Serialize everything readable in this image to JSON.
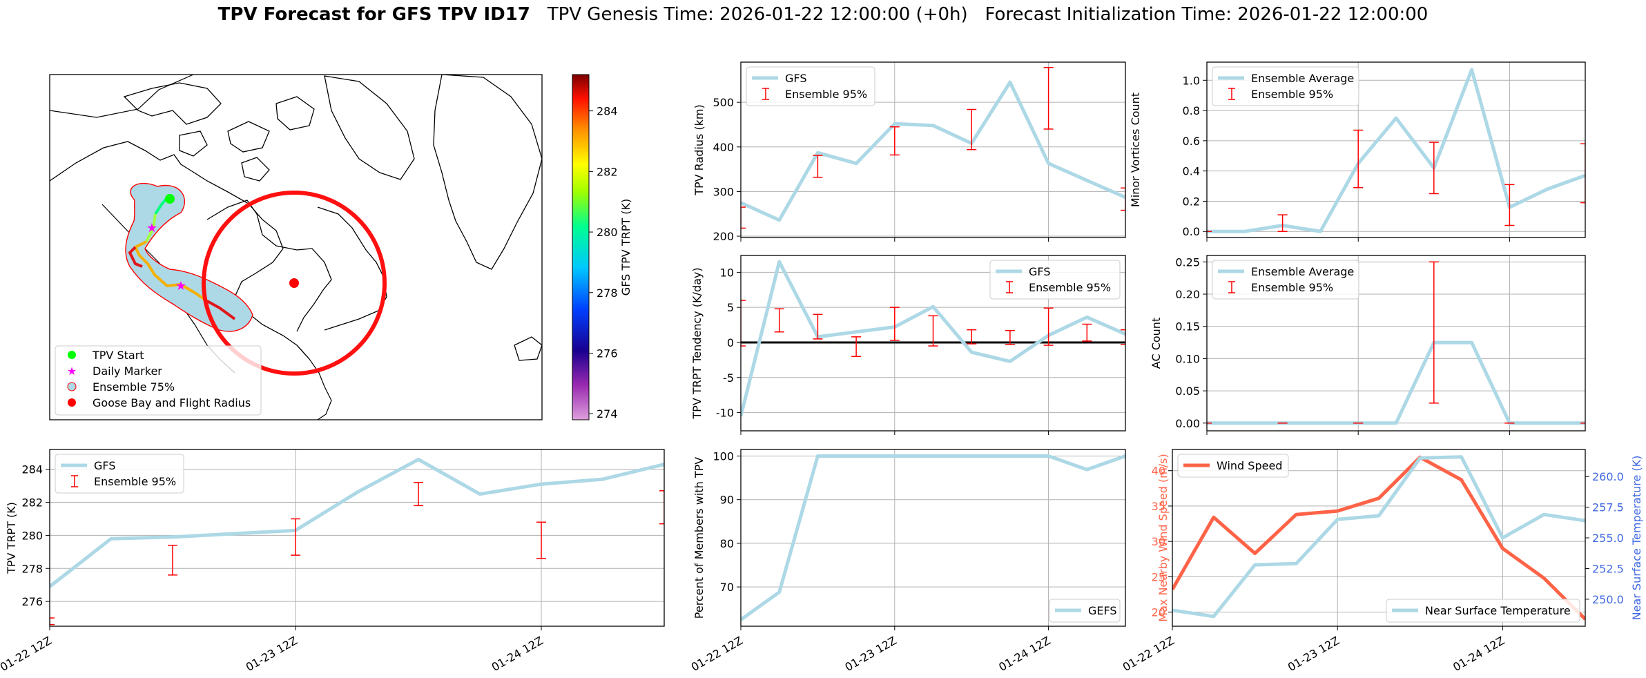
{
  "title": {
    "bold": "TPV Forecast for GFS TPV ID17",
    "genesis": "TPV Genesis Time: 2026-01-22 12:00:00 (+0h)",
    "init": "Forecast Initialization Time: 2026-01-22 12:00:00"
  },
  "colors": {
    "line": "#add8e6",
    "err": "#ff0000",
    "wind": "#ff6347",
    "temp_axis": "#4169e1",
    "black": "#000000",
    "grid": "#b0b0b0"
  },
  "map": {
    "legend": [
      "TPV Start",
      "Daily Marker",
      "Ensemble 75%",
      "Goose Bay and Flight Radius"
    ],
    "colorbar_label": "GFS TPV TRPT (K)",
    "colorbar_ticks": [
      274,
      276,
      278,
      280,
      282,
      284
    ]
  },
  "x_tick_labels": [
    "01-22 12Z",
    "01-23 12Z",
    "01-24 12Z"
  ],
  "chart_data": [
    {
      "id": "radius",
      "type": "line",
      "ylabel": "TPV Radius (km)",
      "xlim": [
        0,
        30
      ],
      "ylim": [
        197,
        590
      ],
      "yticks": [
        200,
        300,
        400,
        500
      ],
      "legend": [
        "GFS",
        "Ensemble 95%"
      ],
      "series": [
        {
          "name": "GFS",
          "x": [
            0,
            3,
            6,
            9,
            12,
            15,
            18,
            21,
            24,
            27,
            30
          ],
          "values": [
            275,
            236,
            387,
            363,
            452,
            448,
            408,
            545,
            363,
            325,
            287
          ]
        }
      ],
      "errorbars": {
        "name": "Ensemble 95%",
        "x": [
          0,
          6,
          12,
          18,
          24,
          30
        ],
        "low": [
          218,
          332,
          382,
          394,
          440,
          258
        ],
        "high": [
          265,
          381,
          445,
          484,
          578,
          308
        ]
      }
    },
    {
      "id": "minor",
      "type": "line",
      "ylabel": "Minor Vortices Count",
      "xlim": [
        0,
        30
      ],
      "ylim": [
        -0.04,
        1.12
      ],
      "yticks": [
        0.0,
        0.2,
        0.4,
        0.6,
        0.8,
        1.0
      ],
      "legend": [
        "Ensemble Average",
        "Ensemble 95%"
      ],
      "series": [
        {
          "name": "Ensemble Average",
          "x": [
            0,
            3,
            6,
            9,
            12,
            15,
            18,
            21,
            24,
            27,
            30
          ],
          "values": [
            0.0,
            0.0,
            0.04,
            0.0,
            0.45,
            0.75,
            0.42,
            1.07,
            0.16,
            0.28,
            0.37
          ]
        }
      ],
      "errorbars": {
        "name": "Ensemble 95%",
        "x": [
          0,
          6,
          12,
          18,
          24,
          30
        ],
        "low": [
          0.0,
          0.0,
          0.29,
          0.25,
          0.04,
          0.19
        ],
        "high": [
          0.0,
          0.11,
          0.67,
          0.59,
          0.31,
          0.58
        ]
      }
    },
    {
      "id": "tendency",
      "type": "line",
      "ylabel": "TPV TRPT Tendency (K/day)",
      "xlim": [
        0,
        30
      ],
      "ylim": [
        -12.6,
        12.4
      ],
      "yticks": [
        -10,
        -5,
        0,
        5,
        10
      ],
      "legend": [
        "GFS",
        "Ensemble 95%"
      ],
      "series": [
        {
          "name": "GFS",
          "x": [
            0,
            3,
            6,
            9,
            12,
            15,
            18,
            21,
            24,
            27,
            30
          ],
          "values": [
            -10.5,
            11.5,
            0.8,
            1.5,
            2.2,
            5.1,
            -1.4,
            -2.7,
            1.0,
            3.6,
            1.2
          ]
        }
      ],
      "errorbars": {
        "name": "Ensemble 95%",
        "x": [
          0,
          3,
          6,
          9,
          12,
          15,
          18,
          21,
          24,
          27,
          30
        ],
        "low": [
          -0.5,
          1.5,
          0.5,
          -2.0,
          0.3,
          -0.5,
          -0.2,
          -0.3,
          -0.4,
          0.2,
          -0.3
        ],
        "high": [
          6.0,
          4.8,
          4.0,
          0.8,
          5.0,
          3.8,
          1.8,
          1.7,
          4.9,
          2.6,
          1.8
        ]
      }
    },
    {
      "id": "ac",
      "type": "line",
      "ylabel": "AC Count",
      "xlim": [
        0,
        30
      ],
      "ylim": [
        -0.012,
        0.26
      ],
      "yticks": [
        0.0,
        0.05,
        0.1,
        0.15,
        0.2,
        0.25
      ],
      "legend": [
        "Ensemble Average",
        "Ensemble 95%"
      ],
      "series": [
        {
          "name": "Ensemble Average",
          "x": [
            0,
            3,
            6,
            9,
            12,
            15,
            18,
            21,
            24,
            27,
            30
          ],
          "values": [
            0,
            0,
            0,
            0,
            0,
            0,
            0.125,
            0.125,
            0,
            0,
            0
          ]
        }
      ],
      "errorbars": {
        "name": "Ensemble 95%",
        "x": [
          0,
          6,
          12,
          18,
          24,
          30
        ],
        "low": [
          0,
          0,
          0,
          0.031,
          0,
          0
        ],
        "high": [
          0,
          0,
          0,
          0.25,
          0,
          0
        ]
      }
    },
    {
      "id": "trpt",
      "type": "line",
      "ylabel": "TPV TRPT (K)",
      "xlim": [
        0,
        30
      ],
      "ylim": [
        274.5,
        285.2
      ],
      "yticks": [
        276,
        278,
        280,
        282,
        284
      ],
      "legend": [
        "GFS",
        "Ensemble 95%"
      ],
      "series": [
        {
          "name": "GFS",
          "x": [
            0,
            3,
            6,
            9,
            12,
            15,
            18,
            21,
            24,
            27,
            30
          ],
          "values": [
            276.9,
            279.8,
            279.9,
            280.1,
            280.3,
            282.6,
            284.6,
            282.5,
            283.1,
            283.4,
            284.3
          ]
        }
      ],
      "errorbars": {
        "name": "Ensemble 95%",
        "x": [
          0,
          6,
          12,
          18,
          24,
          30
        ],
        "low": [
          274.6,
          277.6,
          278.8,
          281.8,
          278.6,
          280.7
        ],
        "high": [
          275.0,
          279.4,
          281.0,
          283.2,
          280.8,
          282.7
        ]
      }
    },
    {
      "id": "members",
      "type": "line",
      "ylabel": "Percent of Members with TPV",
      "xlim": [
        0,
        30
      ],
      "ylim": [
        61,
        101.5
      ],
      "yticks": [
        70,
        80,
        90,
        100
      ],
      "legend": [
        "GEFS"
      ],
      "series": [
        {
          "name": "GEFS",
          "x": [
            0,
            3,
            6,
            9,
            12,
            15,
            18,
            21,
            24,
            27,
            30
          ],
          "values": [
            62.5,
            68.8,
            100,
            100,
            100,
            100,
            100,
            100,
            100,
            96.9,
            100
          ]
        }
      ]
    },
    {
      "id": "wind_temp",
      "type": "line",
      "ylabel": "Max Nearby Wind Speed (m/s)",
      "y2label": "Near Surface Temperature (K)",
      "xlim": [
        0,
        30
      ],
      "ylim": [
        18,
        43
      ],
      "yticks": [
        20,
        25,
        30,
        35,
        40
      ],
      "y2lim": [
        247.8,
        262.2
      ],
      "y2ticks": [
        250.0,
        252.5,
        255.0,
        257.5,
        260.0
      ],
      "legend": [
        "Wind Speed"
      ],
      "legend2": [
        "Near Surface Temperature"
      ],
      "series": [
        {
          "name": "Wind Speed",
          "axis": "left",
          "x": [
            0,
            3,
            6,
            9,
            12,
            15,
            18,
            21,
            24,
            27,
            30
          ],
          "values": [
            23.2,
            33.4,
            28.3,
            33.8,
            34.3,
            36.1,
            41.9,
            38.7,
            29.0,
            24.8,
            19.0
          ]
        },
        {
          "name": "Near Surface Temperature",
          "axis": "right",
          "x": [
            0,
            3,
            6,
            9,
            12,
            15,
            18,
            21,
            24,
            27,
            30
          ],
          "values": [
            249.1,
            248.6,
            252.8,
            252.9,
            256.5,
            256.8,
            261.5,
            261.6,
            255.0,
            256.9,
            256.4
          ]
        }
      ]
    }
  ]
}
